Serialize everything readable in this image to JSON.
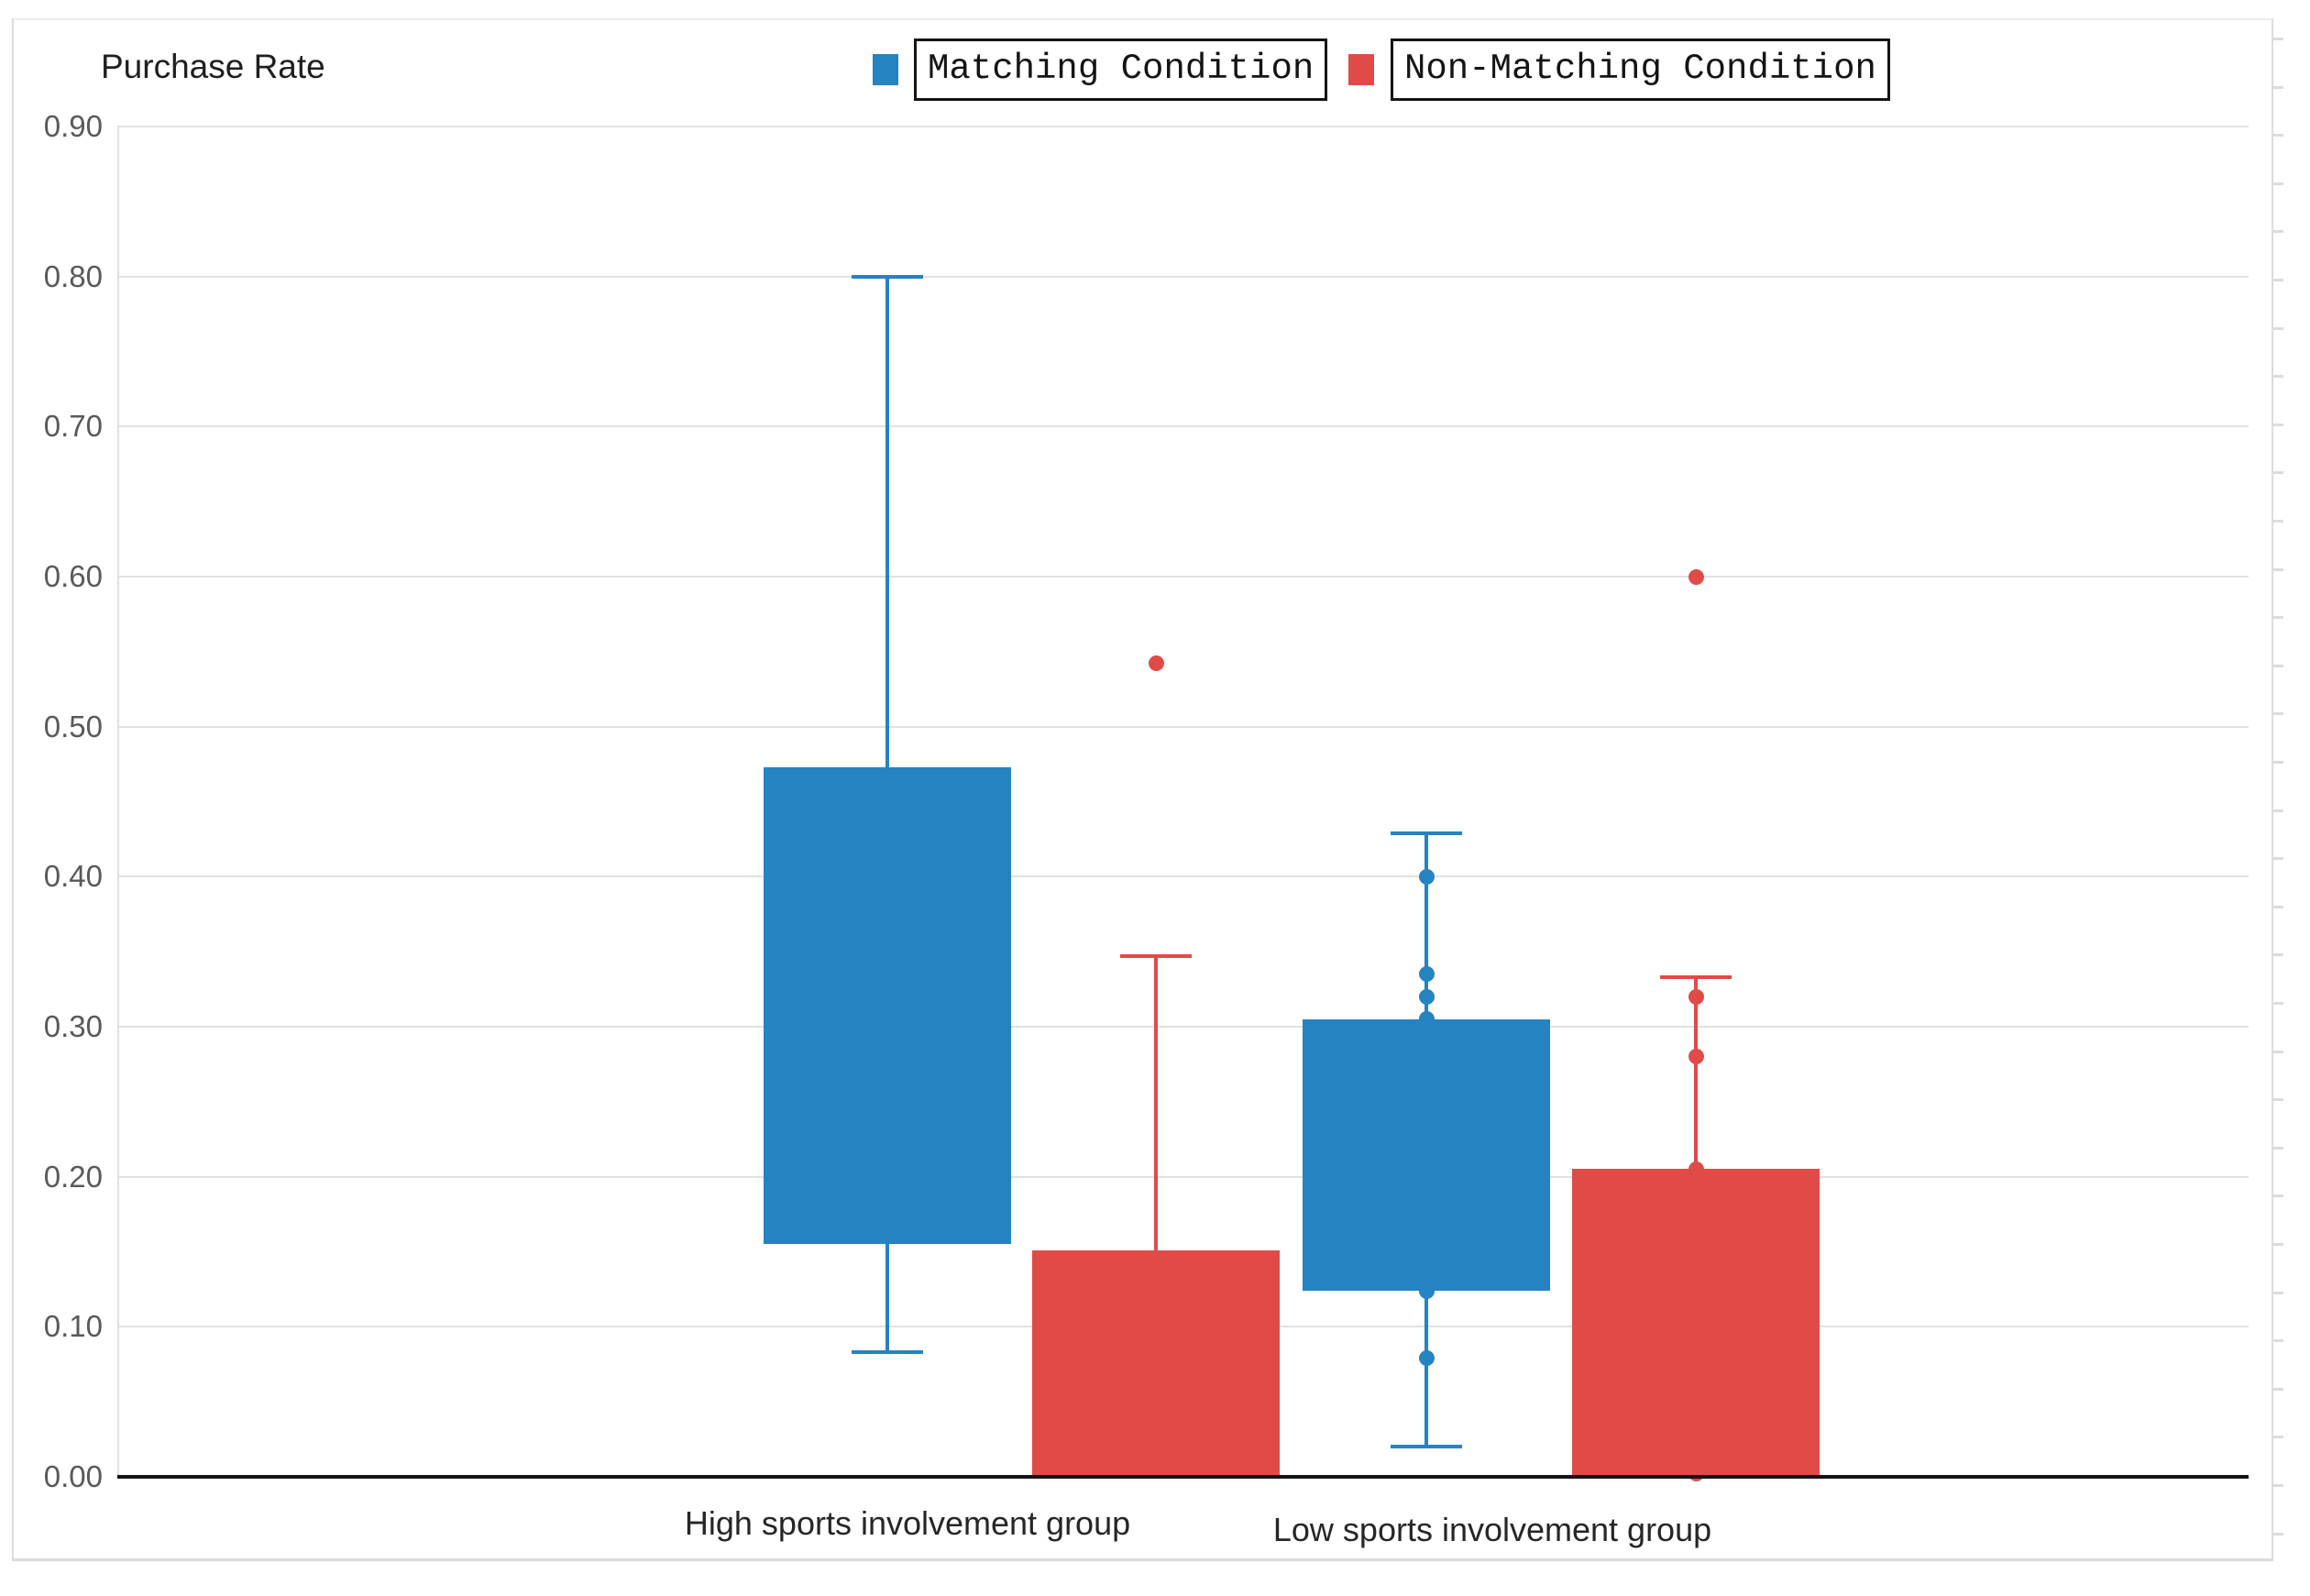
{
  "title": "Purchase Rate",
  "chart_data": {
    "type": "boxplot",
    "title": "Purchase Rate",
    "ylabel": "Purchase Rate",
    "ylim": [
      0.0,
      0.9
    ],
    "yticks": [
      0.0,
      0.1,
      0.2,
      0.3,
      0.4,
      0.5,
      0.6,
      0.7,
      0.8,
      0.9
    ],
    "ytick_labels": [
      "0.00",
      "0.10",
      "0.20",
      "0.30",
      "0.40",
      "0.50",
      "0.60",
      "0.70",
      "0.80",
      "0.90"
    ],
    "grid": true,
    "legend_position": "top",
    "categories": [
      "High sports involvement group",
      "Low sports involvement group"
    ],
    "series": [
      {
        "name": "Matching Condition",
        "color": "#2583c1",
        "boxes": [
          {
            "category": "High sports involvement group",
            "whisker_low": 0.083,
            "q1": 0.155,
            "q3": 0.473,
            "whisker_high": 0.8,
            "points": []
          },
          {
            "category": "Low sports involvement group",
            "whisker_low": 0.02,
            "q1": 0.124,
            "q3": 0.305,
            "whisker_high": 0.429,
            "points": [
              0.4,
              0.335,
              0.32,
              0.305,
              0.124,
              0.079
            ]
          }
        ]
      },
      {
        "name": "Non-Matching Condition",
        "color": "#e04b48",
        "boxes": [
          {
            "category": "High sports involvement group",
            "whisker_low": null,
            "q1": 0.0,
            "q3": 0.151,
            "whisker_high": 0.347,
            "points": [
              0.542
            ]
          },
          {
            "category": "Low sports involvement group",
            "whisker_low": null,
            "q1": 0.0,
            "q3": 0.205,
            "whisker_high": 0.333,
            "points": [
              0.6,
              0.32,
              0.28,
              0.205,
              0.002
            ]
          }
        ]
      }
    ],
    "colors": {
      "matching": "#2583c1",
      "non_matching": "#e04b48",
      "gridline": "#e1e1e1",
      "axis": "#141414",
      "tick_label": "#595959"
    }
  }
}
